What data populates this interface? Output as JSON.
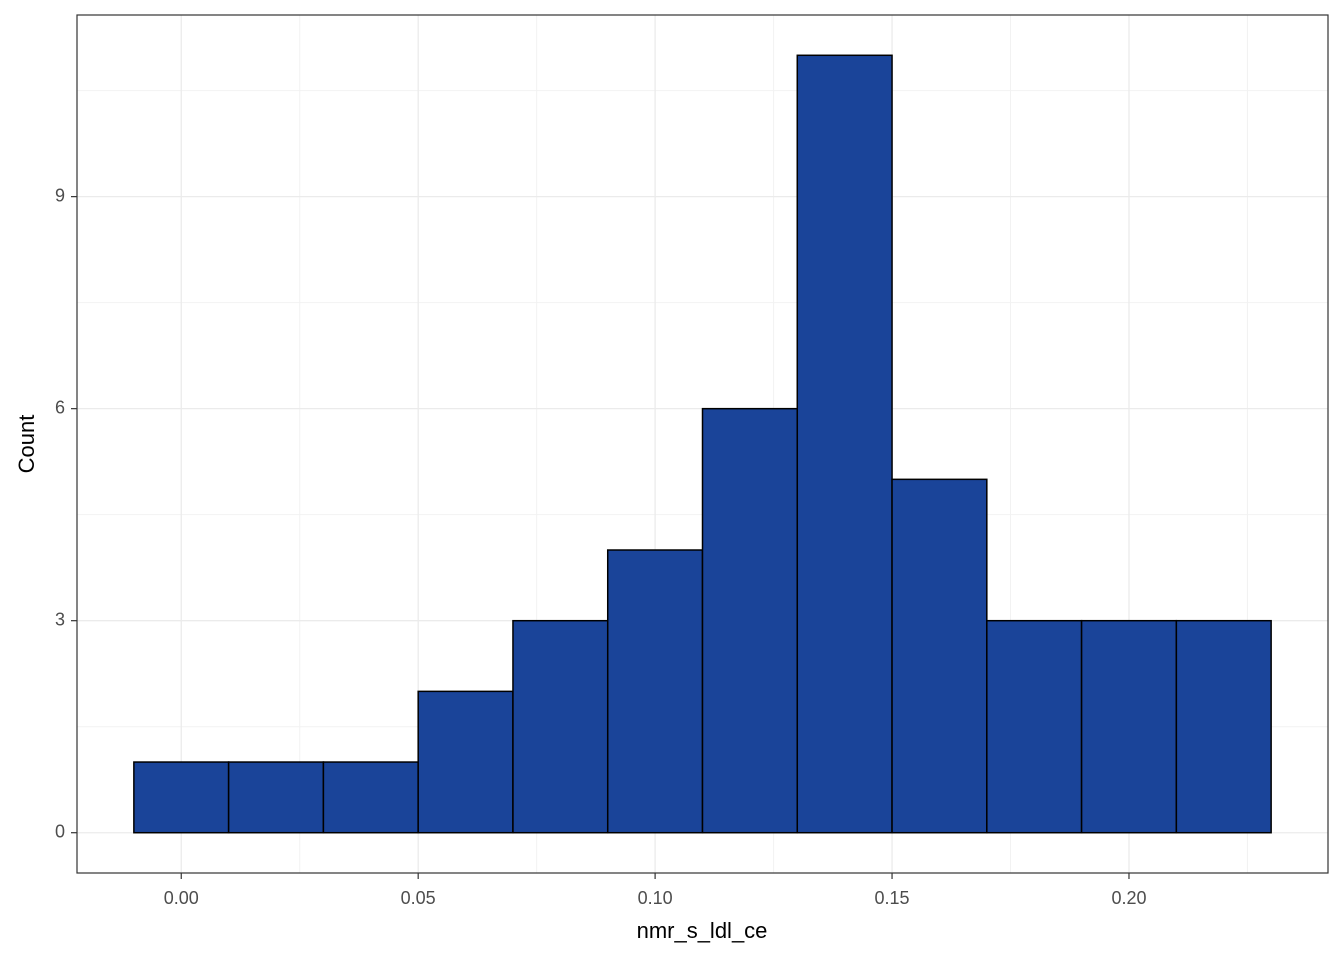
{
  "chart_data": {
    "type": "histogram",
    "x_label": "nmr_s_ldl_ce",
    "y_label": "Count",
    "bins": [
      -0.01,
      0.01,
      0.03,
      0.05,
      0.07,
      0.09,
      0.11,
      0.13,
      0.15,
      0.17,
      0.19,
      0.21,
      0.23
    ],
    "values": [
      1,
      1,
      1,
      2,
      3,
      4,
      6,
      11,
      5,
      3,
      3,
      3
    ],
    "color": "#1a4499",
    "edge_color": "#000000",
    "xlim": [
      -0.022,
      0.242
    ],
    "ylim": [
      -0.57,
      11.57
    ],
    "xticks": [
      {
        "value": 0,
        "label": "0.00"
      },
      {
        "value": 0.05,
        "label": "0.05"
      },
      {
        "value": 0.1,
        "label": "0.10"
      },
      {
        "value": 0.15,
        "label": "0.15"
      },
      {
        "value": 0.2,
        "label": "0.20"
      }
    ],
    "yticks": [
      0,
      3,
      6,
      9
    ],
    "grid": true
  }
}
